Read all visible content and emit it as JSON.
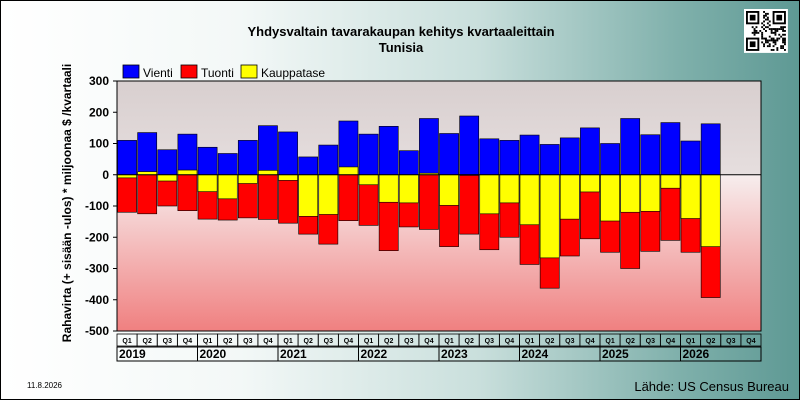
{
  "chart_data": {
    "type": "bar",
    "title": "Yhdysvaltain tavarakaupan kehitys kvartaaleittain",
    "subtitle": "Tunisia",
    "ylabel": "Rahavirta (+ sisään -ulos)  * miljoonaa $ /kvartaali",
    "ylim": [
      -500,
      300
    ],
    "yticks": [
      300,
      200,
      100,
      0,
      -100,
      -200,
      -300,
      -400,
      -500
    ],
    "grid": false,
    "legend_position": "top-left",
    "quarter_labels": [
      "Q1",
      "Q2",
      "Q3",
      "Q4"
    ],
    "years": [
      "2019",
      "2020",
      "2021",
      "2022",
      "2023",
      "2024",
      "2025",
      "2026"
    ],
    "categories": [
      "2019 Q1",
      "2019 Q2",
      "2019 Q3",
      "2019 Q4",
      "2020 Q1",
      "2020 Q2",
      "2020 Q3",
      "2020 Q4",
      "2021 Q1",
      "2021 Q2",
      "2021 Q3",
      "2021 Q4",
      "2022 Q1",
      "2022 Q2",
      "2022 Q3",
      "2022 Q4",
      "2023 Q1",
      "2023 Q2",
      "2023 Q3",
      "2023 Q4",
      "2024 Q1",
      "2024 Q2",
      "2024 Q3",
      "2024 Q4",
      "2025 Q1",
      "2025 Q2",
      "2025 Q3",
      "2025 Q4",
      "2026 Q1",
      "2026 Q2",
      "2026 Q3",
      "2026 Q4"
    ],
    "series": [
      {
        "name": "Vienti",
        "color": "#0000ff",
        "values": [
          110,
          135,
          80,
          130,
          88,
          68,
          110,
          157,
          137,
          57,
          95,
          172,
          130,
          155,
          77,
          180,
          132,
          188,
          115,
          110,
          127,
          97,
          118,
          150,
          100,
          180,
          128,
          167,
          108,
          163,
          null,
          null
        ]
      },
      {
        "name": "Tuonti",
        "color": "#ff0000",
        "values": [
          -120,
          -125,
          -100,
          -115,
          -142,
          -145,
          -138,
          -143,
          -155,
          -190,
          -222,
          -147,
          -162,
          -243,
          -167,
          -175,
          -230,
          -190,
          -240,
          -200,
          -287,
          -363,
          -260,
          -205,
          -248,
          -300,
          -245,
          -210,
          -248,
          -393,
          null,
          null
        ]
      },
      {
        "name": "Kauppatase",
        "color": "#ffff00",
        "values": [
          -10,
          10,
          -20,
          15,
          -54,
          -77,
          -28,
          14,
          -18,
          -133,
          -127,
          25,
          -32,
          -88,
          -90,
          5,
          -98,
          -2,
          -125,
          -90,
          -160,
          -266,
          -142,
          -55,
          -148,
          -120,
          -117,
          -43,
          -140,
          -230,
          null,
          null
        ]
      }
    ]
  },
  "footer": {
    "date": "11.8.2026",
    "source": "Lähde: US Census Bureau"
  },
  "qr_icon": "qr-code-icon"
}
